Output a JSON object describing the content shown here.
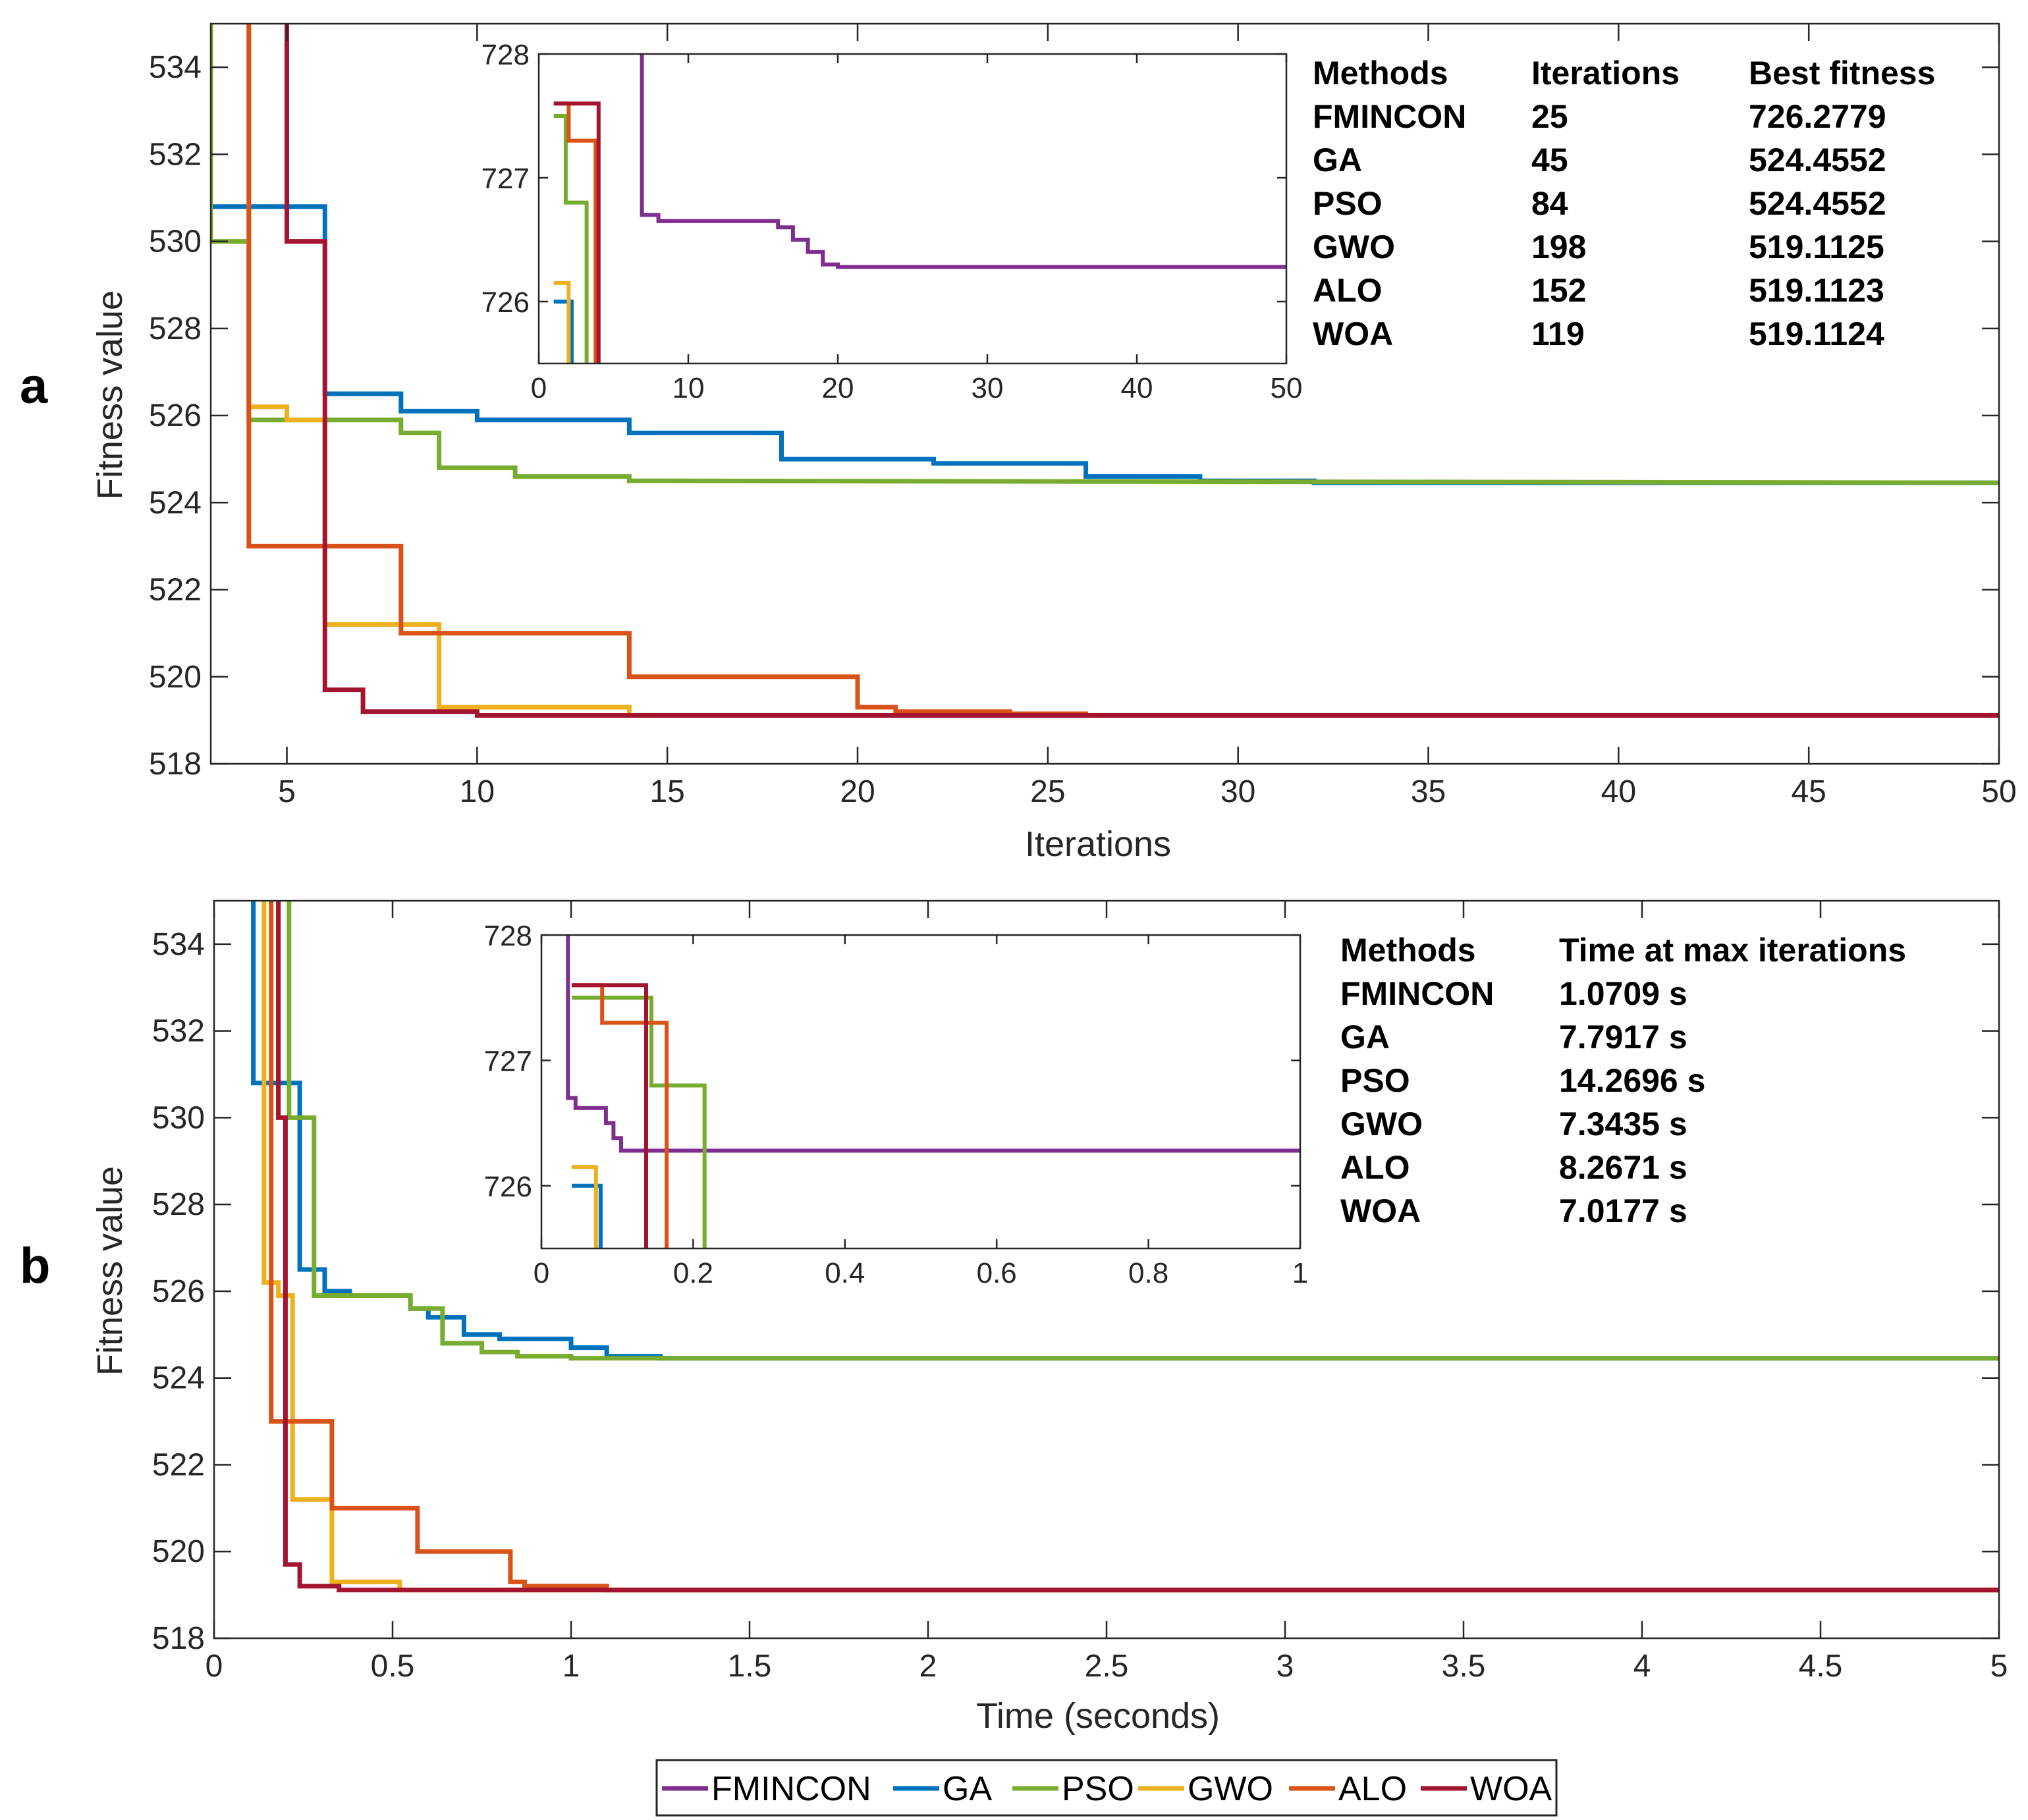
{
  "colors": {
    "FMINCON": "#7E2F8E",
    "GA": "#0072BD",
    "PSO": "#77AC30",
    "GWO": "#EDB120",
    "ALO": "#D95319",
    "WOA": "#A2142F"
  },
  "legend": [
    "FMINCON",
    "GA",
    "PSO",
    "GWO",
    "ALO",
    "WOA"
  ],
  "chart_data": [
    {
      "id": "a",
      "type": "line",
      "panel_label": "a",
      "xlabel": "Iterations",
      "ylabel": "Fitness value",
      "xlim": [
        3,
        50
      ],
      "ylim": [
        518,
        535
      ],
      "xticks": [
        5,
        10,
        15,
        20,
        25,
        30,
        35,
        40,
        45,
        50
      ],
      "yticks": [
        518,
        520,
        522,
        524,
        526,
        528,
        530,
        532,
        534
      ],
      "series": [
        {
          "name": "GA",
          "x": [
            3,
            6,
            6,
            8,
            8,
            10,
            10,
            14,
            14,
            18,
            18,
            22,
            22,
            26,
            26,
            29,
            29,
            32,
            32,
            50
          ],
          "y": [
            530.8,
            530.8,
            526.5,
            526.5,
            526.1,
            526.1,
            525.9,
            525.9,
            525.6,
            525.6,
            525.0,
            525.0,
            524.9,
            524.9,
            524.6,
            524.6,
            524.5,
            524.5,
            524.4552,
            524.4552
          ]
        },
        {
          "name": "PSO",
          "x": [
            3,
            3,
            4,
            4,
            6,
            6,
            8,
            8,
            9,
            9,
            11,
            11,
            14,
            14,
            50
          ],
          "y": [
            535,
            530.0,
            530.0,
            525.9,
            525.9,
            525.9,
            525.9,
            525.6,
            525.6,
            524.8,
            524.8,
            524.6,
            524.6,
            524.5,
            524.4552
          ]
        },
        {
          "name": "GWO",
          "x": [
            4,
            4,
            5,
            5,
            6,
            6,
            8,
            8,
            9,
            9,
            14,
            14,
            50
          ],
          "y": [
            535,
            526.2,
            526.2,
            525.9,
            525.9,
            521.2,
            521.2,
            521.2,
            521.2,
            519.3,
            519.3,
            519.1125,
            519.1125
          ]
        },
        {
          "name": "ALO",
          "x": [
            4,
            4,
            6,
            6,
            8,
            8,
            14,
            14,
            20,
            20,
            21,
            21,
            24,
            24,
            26,
            26,
            50
          ],
          "y": [
            535,
            523.0,
            523.0,
            523.0,
            523.0,
            521.0,
            521.0,
            520.0,
            520.0,
            519.3,
            519.3,
            519.2,
            519.2,
            519.15,
            519.15,
            519.1123,
            519.1123
          ]
        },
        {
          "name": "WOA",
          "x": [
            5,
            5,
            6,
            6,
            7,
            7,
            10,
            10,
            50
          ],
          "y": [
            535,
            530.0,
            530.0,
            519.7,
            519.7,
            519.2,
            519.2,
            519.1124,
            519.1124
          ]
        }
      ],
      "inset": {
        "xlim": [
          0,
          50
        ],
        "ylim": [
          725.5,
          728
        ],
        "xticks": [
          0,
          10,
          20,
          30,
          40,
          50
        ],
        "yticks": [
          726,
          727,
          728
        ],
        "series": [
          {
            "name": "FMINCON",
            "x": [
              6.9,
              6.9,
              8,
              8,
              16,
              16,
              17,
              17,
              18,
              18,
              19,
              19,
              20,
              20,
              50
            ],
            "y": [
              728,
              726.7,
              726.7,
              726.65,
              726.65,
              726.6,
              726.6,
              726.5,
              726.5,
              726.4,
              726.4,
              726.3,
              726.3,
              726.28,
              726.28
            ]
          },
          {
            "name": "GA",
            "x": [
              1,
              2.2,
              2.2
            ],
            "y": [
              726.0,
              726.0,
              725.5
            ]
          },
          {
            "name": "GWO",
            "x": [
              1,
              2,
              2
            ],
            "y": [
              726.15,
              726.15,
              725.5
            ]
          },
          {
            "name": "PSO",
            "x": [
              1,
              1.8,
              1.8,
              3,
              3,
              3.2,
              3.2
            ],
            "y": [
              727.5,
              727.5,
              726.8,
              726.8,
              726.8,
              726.8,
              725.5
            ]
          },
          {
            "name": "ALO",
            "x": [
              1,
              2,
              2,
              3.8,
              3.8
            ],
            "y": [
              727.6,
              727.6,
              727.3,
              727.3,
              725.5
            ]
          },
          {
            "name": "WOA",
            "x": [
              1,
              4,
              4
            ],
            "y": [
              727.6,
              727.6,
              725.5
            ]
          }
        ]
      },
      "table": {
        "headers": [
          "Methods",
          "Iterations",
          "Best fitness"
        ],
        "rows": [
          [
            "FMINCON",
            "25",
            "726.2779"
          ],
          [
            "GA",
            "45",
            "524.4552"
          ],
          [
            "PSO",
            "84",
            "524.4552"
          ],
          [
            "GWO",
            "198",
            "519.1125"
          ],
          [
            "ALO",
            "152",
            "519.1123"
          ],
          [
            "WOA",
            "119",
            "519.1124"
          ]
        ]
      }
    },
    {
      "id": "b",
      "type": "line",
      "panel_label": "b",
      "xlabel": "Time (seconds)",
      "ylabel": "Fitness value",
      "xlim": [
        0,
        5
      ],
      "ylim": [
        518,
        535
      ],
      "xticks": [
        0,
        0.5,
        1,
        1.5,
        2,
        2.5,
        3,
        3.5,
        4,
        4.5,
        5
      ],
      "yticks": [
        518,
        520,
        522,
        524,
        526,
        528,
        530,
        532,
        534
      ],
      "series": [
        {
          "name": "GA",
          "x": [
            0.11,
            0.11,
            0.24,
            0.24,
            0.31,
            0.31,
            0.38,
            0.38,
            0.55,
            0.55,
            0.6,
            0.6,
            0.7,
            0.7,
            0.8,
            0.8,
            1.0,
            1.0,
            1.1,
            1.1,
            1.25,
            1.25,
            5
          ],
          "y": [
            535,
            530.8,
            530.8,
            526.5,
            526.5,
            526.0,
            526.0,
            525.9,
            525.9,
            525.6,
            525.6,
            525.4,
            525.4,
            525.0,
            525.0,
            524.9,
            524.9,
            524.7,
            524.7,
            524.5,
            524.5,
            524.4552,
            524.4552
          ]
        },
        {
          "name": "PSO",
          "x": [
            0.21,
            0.21,
            0.28,
            0.28,
            0.55,
            0.55,
            0.64,
            0.64,
            0.75,
            0.75,
            0.85,
            0.85,
            1.0,
            1.0,
            5
          ],
          "y": [
            535,
            530.0,
            530.0,
            525.9,
            525.9,
            525.6,
            525.6,
            524.8,
            524.8,
            524.6,
            524.6,
            524.5,
            524.5,
            524.4552,
            524.4552
          ]
        },
        {
          "name": "GWO",
          "x": [
            0.14,
            0.14,
            0.18,
            0.18,
            0.22,
            0.22,
            0.33,
            0.33,
            0.52,
            0.52,
            5
          ],
          "y": [
            535,
            526.2,
            526.2,
            525.9,
            525.9,
            521.2,
            521.2,
            519.3,
            519.3,
            519.1125,
            519.1125
          ]
        },
        {
          "name": "ALO",
          "x": [
            0.16,
            0.16,
            0.33,
            0.33,
            0.57,
            0.57,
            0.83,
            0.83,
            0.87,
            0.87,
            1.1,
            1.1,
            5
          ],
          "y": [
            535,
            523.0,
            523.0,
            521.0,
            521.0,
            520.0,
            520.0,
            519.3,
            519.3,
            519.2,
            519.2,
            519.1123,
            519.1123
          ]
        },
        {
          "name": "WOA",
          "x": [
            0.18,
            0.18,
            0.2,
            0.2,
            0.24,
            0.24,
            0.35,
            0.35,
            5
          ],
          "y": [
            535,
            530.0,
            530.0,
            519.7,
            519.7,
            519.2,
            519.2,
            519.1124,
            519.1124
          ]
        }
      ],
      "inset": {
        "xlim": [
          0,
          1
        ],
        "ylim": [
          725.5,
          728
        ],
        "xticks": [
          0,
          0.2,
          0.4,
          0.6,
          0.8,
          1
        ],
        "yticks": [
          726,
          727,
          728
        ],
        "series": [
          {
            "name": "FMINCON",
            "x": [
              0.035,
              0.035,
              0.045,
              0.045,
              0.085,
              0.085,
              0.095,
              0.095,
              0.105,
              0.105,
              1
            ],
            "y": [
              728,
              726.7,
              726.7,
              726.62,
              726.62,
              726.5,
              726.5,
              726.38,
              726.38,
              726.28,
              726.28
            ]
          },
          {
            "name": "GA",
            "x": [
              0.04,
              0.078,
              0.078
            ],
            "y": [
              726.0,
              726.0,
              725.5
            ]
          },
          {
            "name": "GWO",
            "x": [
              0.04,
              0.072,
              0.072
            ],
            "y": [
              726.15,
              726.15,
              725.5
            ]
          },
          {
            "name": "PSO",
            "x": [
              0.04,
              0.145,
              0.145,
              0.215,
              0.215
            ],
            "y": [
              727.5,
              727.5,
              726.8,
              726.8,
              725.5
            ]
          },
          {
            "name": "ALO",
            "x": [
              0.04,
              0.08,
              0.08,
              0.165,
              0.165
            ],
            "y": [
              727.6,
              727.6,
              727.3,
              727.3,
              725.5
            ]
          },
          {
            "name": "WOA",
            "x": [
              0.04,
              0.138,
              0.138
            ],
            "y": [
              727.6,
              727.6,
              725.5
            ]
          }
        ]
      },
      "table": {
        "headers": [
          "Methods",
          "Time at max iterations"
        ],
        "rows": [
          [
            "FMINCON",
            "1.0709 s"
          ],
          [
            "GA",
            "7.7917 s"
          ],
          [
            "PSO",
            "14.2696 s"
          ],
          [
            "GWO",
            "7.3435 s"
          ],
          [
            "ALO",
            "8.2671 s"
          ],
          [
            "WOA",
            "7.0177 s"
          ]
        ]
      }
    }
  ]
}
